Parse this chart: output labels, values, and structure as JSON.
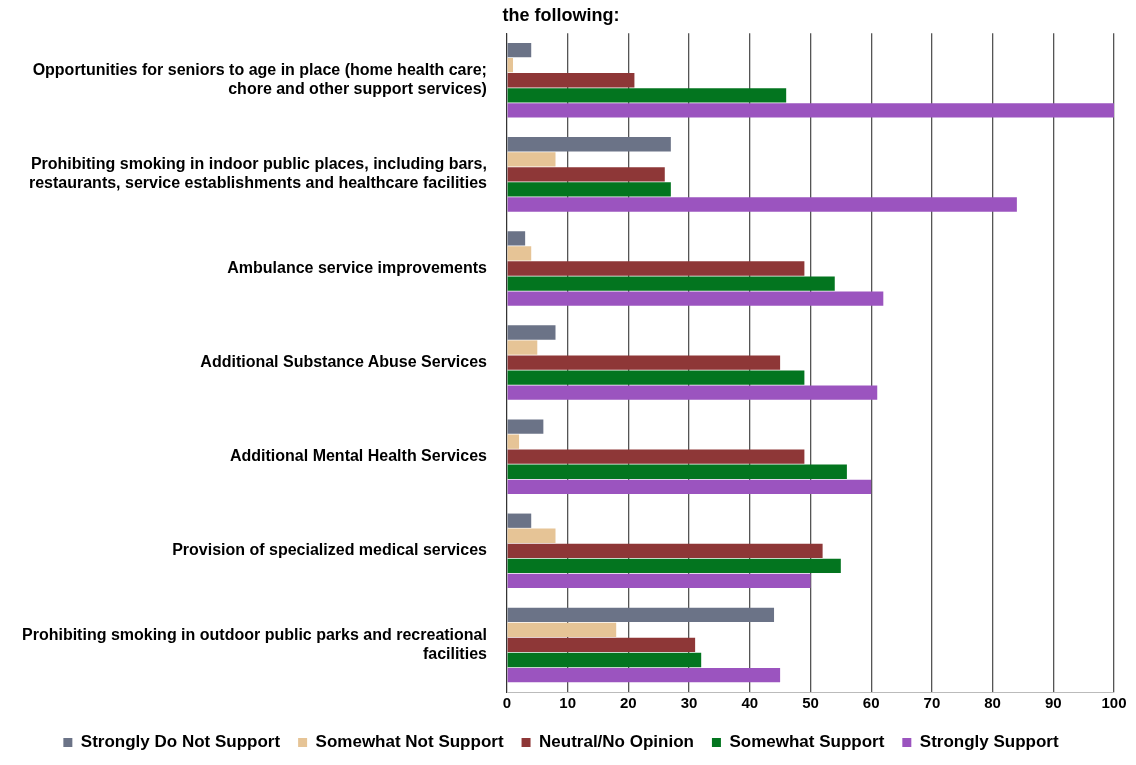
{
  "chart_data": {
    "type": "bar",
    "orientation": "horizontal",
    "title": "the following:",
    "categories": [
      "Opportunities for seniors to age in place (home health care; chore and other support services)",
      "Prohibiting smoking in indoor public places, including bars, restaurants, service establishments and healthcare facilities",
      "Ambulance service improvements",
      "Additional Substance Abuse Services",
      "Additional Mental Health Services",
      "Provision of specialized medical services",
      "Prohibiting smoking in outdoor public parks and recreational facilities"
    ],
    "series": [
      {
        "name": "Strongly Do Not Support",
        "color": "#6b7387",
        "values": [
          4,
          27,
          3,
          8,
          6,
          4,
          44
        ]
      },
      {
        "name": "Somewhat Not Support",
        "color": "#e6c496",
        "values": [
          1,
          8,
          4,
          5,
          2,
          8,
          18
        ]
      },
      {
        "name": "Neutral/No Opinion",
        "color": "#8e3737",
        "values": [
          21,
          26,
          49,
          45,
          49,
          52,
          31
        ]
      },
      {
        "name": "Somewhat Support",
        "color": "#03751f",
        "values": [
          46,
          27,
          54,
          49,
          56,
          55,
          32
        ]
      },
      {
        "name": "Strongly Support",
        "color": "#9b54bf",
        "values": [
          100,
          84,
          62,
          61,
          60,
          50,
          45
        ]
      }
    ],
    "xlim": [
      0,
      100
    ],
    "xticks": [
      0,
      10,
      20,
      30,
      40,
      50,
      60,
      70,
      80,
      90,
      100
    ],
    "grid": "x",
    "legend": "bottom"
  }
}
